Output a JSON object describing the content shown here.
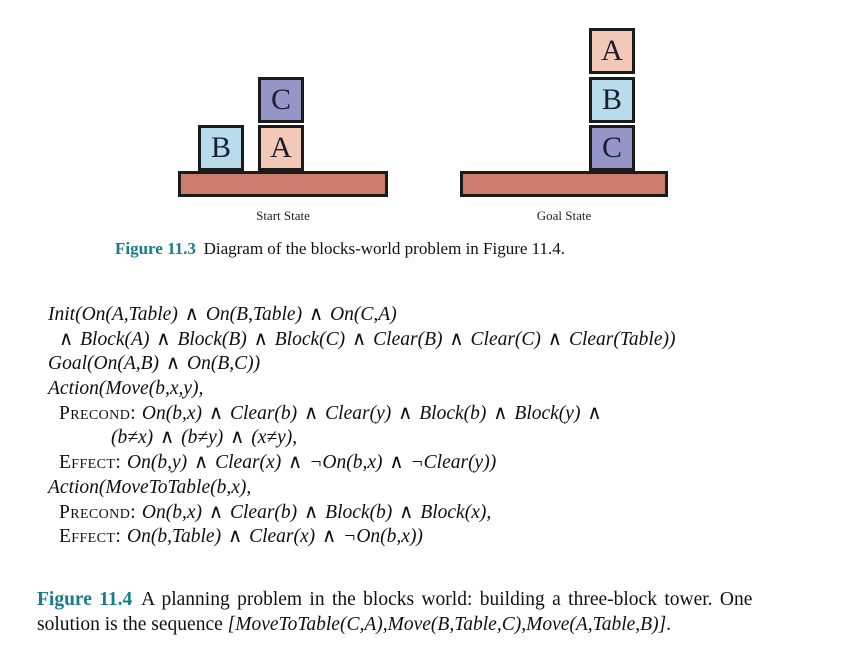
{
  "diagram": {
    "start_label": "Start State",
    "goal_label": "Goal State",
    "letters": {
      "A": "A",
      "B": "B",
      "C": "C"
    },
    "colors": {
      "block_a": "#f2c9b6",
      "block_b": "#b9dcec",
      "block_c": "#9496c8",
      "table": "#cc7b6c",
      "outline": "#1b1b1b"
    }
  },
  "caption3": {
    "label": "Figure 11.3",
    "text": "Diagram of the blocks-world problem in Figure 11.4.",
    "accent_color": "#177c8e"
  },
  "code": {
    "lines": [
      {
        "label": "",
        "text": "Init(On(A,Table) ∧ On(B,Table) ∧ On(C,A)"
      },
      {
        "label": "",
        "text": "∧ Block(A) ∧ Block(B) ∧ Block(C) ∧ Clear(B) ∧ Clear(C) ∧ Clear(Table))"
      },
      {
        "label": "",
        "text": "Goal(On(A,B) ∧ On(B,C))"
      },
      {
        "label": "",
        "text": "Action(Move(b,x,y),"
      },
      {
        "label": "Precond:",
        "text": "On(b,x) ∧ Clear(b) ∧ Clear(y) ∧ Block(b) ∧ Block(y) ∧"
      },
      {
        "label": "",
        "text": "(b≠x) ∧ (b≠y) ∧ (x≠y),"
      },
      {
        "label": "Effect:",
        "text": "On(b,y) ∧ Clear(x) ∧ ¬On(b,x) ∧ ¬Clear(y))"
      },
      {
        "label": "",
        "text": "Action(MoveToTable(b,x),"
      },
      {
        "label": "Precond:",
        "text": "On(b,x) ∧ Clear(b) ∧ Block(b) ∧ Block(x),"
      },
      {
        "label": "Effect:",
        "text": "On(b,Table) ∧ Clear(x) ∧ ¬On(b,x))"
      }
    ]
  },
  "caption4": {
    "label": "Figure 11.4",
    "line1": "A planning problem in the blocks world: building a three-block tower. One",
    "line2_prefix": "solution is the sequence ",
    "line2_sequence": "[MoveToTable(C,A),Move(B,Table,C),Move(A,Table,B)]",
    "line2_suffix": ".",
    "accent_color": "#177c8e"
  }
}
